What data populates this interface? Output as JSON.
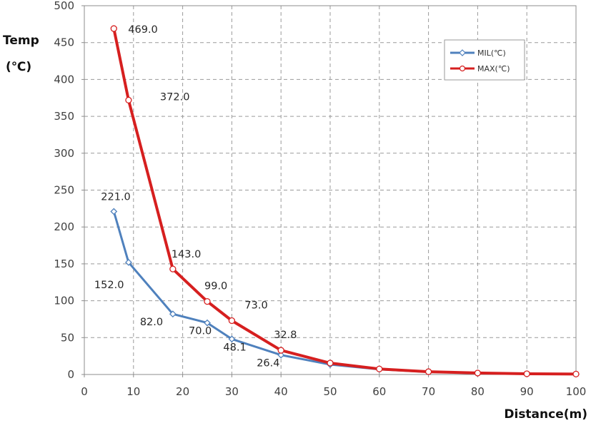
{
  "chart_data": {
    "type": "line",
    "ylabel_line1": "Temp",
    "ylabel_line2": "(℃)",
    "xlabel": "Distance(m)",
    "xlim": [
      0,
      100
    ],
    "ylim": [
      0,
      500
    ],
    "x_ticks": [
      "0",
      "10",
      "20",
      "30",
      "40",
      "50",
      "60",
      "70",
      "80",
      "90",
      "100"
    ],
    "y_ticks": [
      "0",
      "50",
      "100",
      "150",
      "200",
      "250",
      "300",
      "350",
      "400",
      "450",
      "500"
    ],
    "grid": true,
    "legend_position": "top-right",
    "series": [
      {
        "name": "MIL(℃)",
        "color": "#4f81bd",
        "marker": "diamond",
        "x": [
          6,
          9,
          18,
          25,
          30,
          40,
          50,
          60,
          70,
          80,
          90,
          100
        ],
        "y": [
          221.0,
          152.0,
          82.0,
          70.0,
          48.1,
          26.4,
          13.5,
          7.0,
          3.5,
          1.8,
          0.9,
          0.5
        ],
        "labels": [
          "221.0",
          "152.0",
          "82.0",
          "70.0",
          "48.1",
          "26.4",
          "",
          "",
          "",
          "",
          "",
          ""
        ]
      },
      {
        "name": "MAX(℃)",
        "color": "#d61f1f",
        "marker": "circle",
        "x": [
          6,
          9,
          18,
          25,
          30,
          40,
          50,
          60,
          70,
          80,
          90,
          100
        ],
        "y": [
          469.0,
          372.0,
          143.0,
          99.0,
          73.0,
          32.8,
          15.5,
          7.5,
          3.8,
          2.0,
          1.0,
          0.6
        ],
        "labels": [
          "469.0",
          "372.0",
          "143.0",
          "99.0",
          "73.0",
          "32.8",
          "",
          "",
          "",
          "",
          "",
          ""
        ]
      }
    ]
  }
}
